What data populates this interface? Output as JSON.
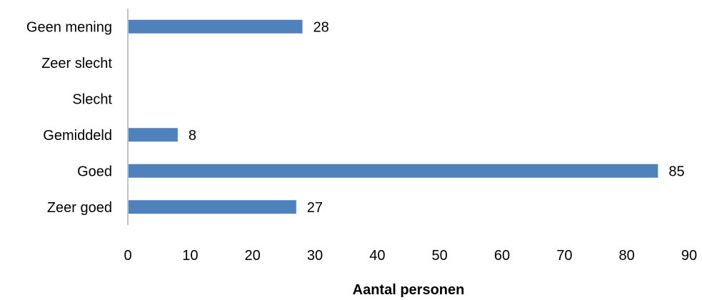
{
  "chart_data": {
    "type": "bar",
    "orientation": "horizontal",
    "categories": [
      "Geen mening",
      "Zeer slecht",
      "Slecht",
      "Gemiddeld",
      "Goed",
      "Zeer goed"
    ],
    "values": [
      28,
      null,
      null,
      8,
      85,
      27
    ],
    "data_labels": [
      "28",
      "",
      "",
      "8",
      "85",
      "27"
    ],
    "xlabel": "Aantal personen",
    "ylabel": "",
    "xlim": [
      0,
      90
    ],
    "x_ticks": [
      "0",
      "10",
      "20",
      "30",
      "40",
      "50",
      "60",
      "70",
      "80",
      "90"
    ],
    "grid": false,
    "legend": "none",
    "bar_color": "#4f81bd"
  }
}
